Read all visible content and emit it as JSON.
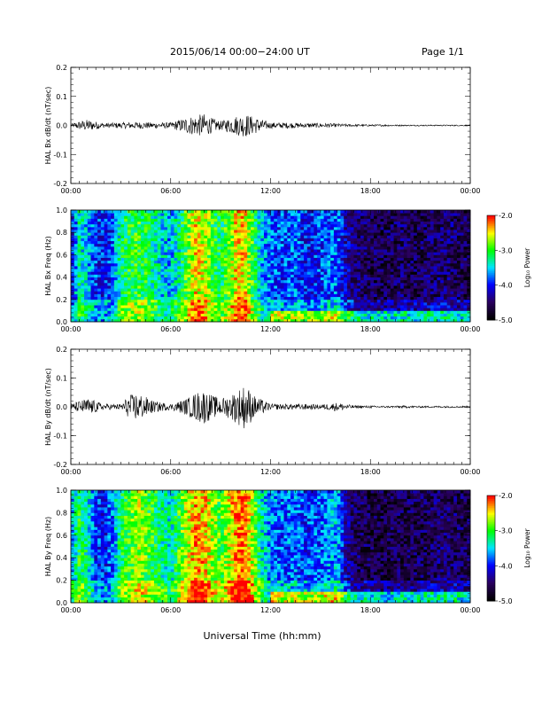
{
  "header": {
    "title": "2015/06/14  00:00−24:00 UT",
    "page": "Page 1/1"
  },
  "figure": {
    "xlabel": "Universal Time (hh:mm)"
  },
  "colorbar": {
    "label": "Log₁₀ Power",
    "ticks": [
      "-2.0",
      "-3.0",
      "-4.0",
      "-5.0"
    ],
    "colors": [
      "#ff0000",
      "#ffff00",
      "#00ff00",
      "#00e5ff",
      "#0000ff",
      "#2a0060",
      "#000000"
    ]
  },
  "chart_data": [
    {
      "type": "line",
      "ylabel": "HAL Bx dB/dt (nT/sec)",
      "xlim": [
        0,
        24
      ],
      "ylim": [
        -0.2,
        0.2
      ],
      "x_ticks": [
        "00:00",
        "06:00",
        "12:00",
        "18:00",
        "00:00"
      ],
      "y_ticks": [
        "0.2",
        "0.1",
        "0.0",
        "-0.1",
        "-0.2"
      ],
      "envelope": {
        "x_hours": [
          0,
          0.5,
          1,
          2,
          3,
          4,
          5,
          6,
          7,
          7.5,
          8,
          8.5,
          9,
          10,
          10.5,
          11,
          12,
          13,
          14,
          15,
          16,
          17,
          18,
          19,
          20,
          21,
          22,
          23,
          24
        ],
        "amplitude": [
          0.005,
          0.015,
          0.02,
          0.008,
          0.01,
          0.012,
          0.01,
          0.01,
          0.03,
          0.035,
          0.04,
          0.025,
          0.015,
          0.035,
          0.04,
          0.03,
          0.01,
          0.01,
          0.008,
          0.008,
          0.006,
          0.004,
          0.003,
          0.003,
          0.002,
          0.002,
          0.002,
          0.002,
          0.002
        ]
      }
    },
    {
      "type": "heatmap",
      "ylabel": "HAL Bx Freq (Hz)",
      "xlim": [
        0,
        24
      ],
      "ylim": [
        0,
        1.0
      ],
      "zlim": [
        -5.0,
        -2.0
      ],
      "x_ticks": [
        "00:00",
        "06:00",
        "12:00",
        "18:00",
        "00:00"
      ],
      "y_ticks": [
        "1.0",
        "0.8",
        "0.6",
        "0.4",
        "0.2",
        "0.0"
      ],
      "time_hours": [
        0,
        0.5,
        1,
        1.5,
        2,
        2.5,
        3,
        3.5,
        4,
        4.5,
        5,
        5.5,
        6,
        6.5,
        7,
        7.5,
        8,
        8.5,
        9,
        9.5,
        10,
        10.5,
        11,
        11.5,
        12,
        12.5,
        13,
        13.5,
        14,
        14.5,
        15,
        15.5,
        16,
        16.5,
        17,
        17.5,
        18,
        18.5,
        19,
        19.5,
        20,
        20.5,
        21,
        21.5,
        22,
        22.5,
        23,
        23.5
      ],
      "log_power": [
        -4.2,
        -3.3,
        -3.6,
        -3.9,
        -4.0,
        -3.9,
        -3.2,
        -3.1,
        -3.0,
        -3.1,
        -3.3,
        -3.5,
        -3.6,
        -3.3,
        -2.9,
        -2.5,
        -2.6,
        -3.0,
        -3.2,
        -2.9,
        -2.4,
        -2.5,
        -3.1,
        -3.6,
        -3.8,
        -3.9,
        -3.9,
        -3.8,
        -4.0,
        -4.0,
        -3.9,
        -3.8,
        -3.8,
        -4.2,
        -4.4,
        -4.5,
        -4.6,
        -4.6,
        -4.6,
        -4.6,
        -4.5,
        -4.6,
        -4.6,
        -4.5,
        -4.5,
        -4.5,
        -4.5,
        -4.6
      ]
    },
    {
      "type": "line",
      "ylabel": "HAL By dB/dt (nT/sec)",
      "xlim": [
        0,
        24
      ],
      "ylim": [
        -0.2,
        0.2
      ],
      "x_ticks": [
        "00:00",
        "06:00",
        "12:00",
        "18:00",
        "00:00"
      ],
      "y_ticks": [
        "0.2",
        "0.1",
        "0.0",
        "-0.1",
        "-0.2"
      ],
      "envelope": {
        "x_hours": [
          0,
          0.5,
          1,
          2,
          3,
          3.5,
          4,
          4.5,
          5,
          6,
          7,
          7.5,
          8,
          8.5,
          9,
          9.5,
          10,
          10.5,
          11,
          12,
          13,
          14,
          15,
          16,
          17,
          18,
          19,
          20,
          21,
          22,
          23,
          24
        ],
        "amplitude": [
          0.01,
          0.02,
          0.03,
          0.01,
          0.01,
          0.04,
          0.05,
          0.035,
          0.02,
          0.01,
          0.03,
          0.05,
          0.06,
          0.04,
          0.03,
          0.04,
          0.06,
          0.08,
          0.04,
          0.01,
          0.01,
          0.01,
          0.008,
          0.015,
          0.005,
          0.004,
          0.003,
          0.004,
          0.003,
          0.003,
          0.003,
          0.003
        ]
      }
    },
    {
      "type": "heatmap",
      "ylabel": "HAL By Freq (Hz)",
      "xlim": [
        0,
        24
      ],
      "ylim": [
        0,
        1.0
      ],
      "zlim": [
        -5.0,
        -2.0
      ],
      "x_ticks": [
        "00:00",
        "06:00",
        "12:00",
        "18:00",
        "00:00"
      ],
      "y_ticks": [
        "1.0",
        "0.8",
        "0.6",
        "0.4",
        "0.2",
        "0.0"
      ],
      "time_hours": [
        0,
        0.5,
        1,
        1.5,
        2,
        2.5,
        3,
        3.5,
        4,
        4.5,
        5,
        5.5,
        6,
        6.5,
        7,
        7.5,
        8,
        8.5,
        9,
        9.5,
        10,
        10.5,
        11,
        11.5,
        12,
        12.5,
        13,
        13.5,
        14,
        14.5,
        15,
        15.5,
        16,
        16.5,
        17,
        17.5,
        18,
        18.5,
        19,
        19.5,
        20,
        20.5,
        21,
        21.5,
        22,
        22.5,
        23,
        23.5
      ],
      "log_power": [
        -3.6,
        -3.1,
        -3.3,
        -3.9,
        -4.0,
        -3.8,
        -3.1,
        -3.0,
        -2.7,
        -2.9,
        -3.1,
        -3.3,
        -3.4,
        -3.0,
        -2.7,
        -2.3,
        -2.4,
        -2.7,
        -3.0,
        -2.6,
        -2.2,
        -2.2,
        -2.8,
        -3.4,
        -3.7,
        -3.8,
        -3.8,
        -3.8,
        -3.9,
        -3.9,
        -3.8,
        -3.7,
        -3.6,
        -4.2,
        -4.5,
        -4.6,
        -4.6,
        -4.7,
        -4.7,
        -4.6,
        -4.6,
        -4.6,
        -4.6,
        -4.6,
        -4.5,
        -4.5,
        -4.5,
        -4.6
      ]
    }
  ]
}
